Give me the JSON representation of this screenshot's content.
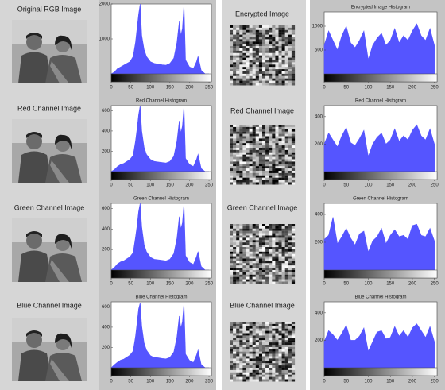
{
  "image_labels": [
    "Original RGB Image",
    "Red Channel Image",
    "Green Channel Image",
    "Blue Channel Image"
  ],
  "encrypted_labels": [
    "Encrypted Image",
    "Red Channel Image",
    "Green Channel Image",
    "Blue Channel Image"
  ],
  "chart_data": [
    {
      "type": "area",
      "color": "#5555ff",
      "xlim": [
        0,
        256
      ],
      "xticks": [
        0,
        50,
        100,
        150,
        200,
        250
      ],
      "ylim": [
        0,
        2000
      ],
      "yticks": [
        1000,
        2000
      ],
      "x": [
        0,
        8,
        16,
        24,
        32,
        40,
        48,
        56,
        62,
        66,
        70,
        74,
        78,
        84,
        90,
        100,
        110,
        120,
        130,
        140,
        150,
        160,
        168,
        174,
        178,
        182,
        186,
        190,
        200,
        210,
        218,
        222,
        230,
        240,
        250
      ],
      "values": [
        0,
        50,
        150,
        200,
        250,
        300,
        350,
        500,
        900,
        1300,
        1700,
        2000,
        1100,
        700,
        500,
        350,
        300,
        280,
        260,
        250,
        300,
        450,
        900,
        1500,
        1100,
        1300,
        2000,
        400,
        200,
        150,
        350,
        500,
        100,
        0,
        0
      ]
    },
    {
      "type": "area",
      "title": "Red Channel Histogram",
      "color": "#5555ff",
      "xlim": [
        0,
        256
      ],
      "xticks": [
        0,
        50,
        100,
        150,
        200,
        250
      ],
      "ylim": [
        0,
        650
      ],
      "yticks": [
        200,
        400,
        600
      ],
      "x": [
        0,
        8,
        16,
        24,
        32,
        40,
        48,
        56,
        62,
        66,
        70,
        74,
        78,
        84,
        90,
        100,
        110,
        120,
        130,
        140,
        150,
        160,
        168,
        174,
        178,
        182,
        186,
        190,
        200,
        210,
        218,
        222,
        230,
        240,
        250
      ],
      "values": [
        0,
        20,
        50,
        70,
        80,
        100,
        120,
        160,
        300,
        420,
        560,
        650,
        400,
        240,
        170,
        120,
        100,
        95,
        90,
        85,
        100,
        150,
        300,
        500,
        380,
        450,
        650,
        130,
        70,
        50,
        120,
        170,
        30,
        0,
        0
      ]
    },
    {
      "type": "area",
      "title": "Green Channel Histogram",
      "color": "#5555ff",
      "xlim": [
        0,
        256
      ],
      "xticks": [
        0,
        50,
        100,
        150,
        200,
        250
      ],
      "ylim": [
        0,
        650
      ],
      "yticks": [
        200,
        400,
        600
      ],
      "x": [
        0,
        8,
        16,
        24,
        32,
        40,
        48,
        56,
        62,
        66,
        70,
        74,
        78,
        84,
        90,
        100,
        110,
        120,
        130,
        140,
        150,
        160,
        168,
        174,
        178,
        182,
        186,
        190,
        200,
        210,
        218,
        222,
        230,
        240,
        250
      ],
      "values": [
        0,
        25,
        60,
        80,
        90,
        110,
        130,
        170,
        320,
        430,
        570,
        650,
        420,
        250,
        180,
        125,
        105,
        100,
        95,
        90,
        105,
        160,
        310,
        520,
        400,
        460,
        650,
        140,
        75,
        55,
        130,
        180,
        35,
        0,
        0
      ]
    },
    {
      "type": "area",
      "title": "Blue Channel Histogram",
      "color": "#5555ff",
      "xlim": [
        0,
        256
      ],
      "xticks": [
        0,
        50,
        100,
        150,
        200,
        250
      ],
      "ylim": [
        0,
        650
      ],
      "yticks": [
        200,
        400,
        600
      ],
      "x": [
        0,
        8,
        16,
        24,
        32,
        40,
        48,
        56,
        62,
        66,
        70,
        74,
        78,
        84,
        90,
        100,
        110,
        120,
        130,
        140,
        150,
        160,
        168,
        174,
        178,
        182,
        186,
        190,
        200,
        210,
        218,
        222,
        230,
        240,
        250
      ],
      "values": [
        0,
        30,
        55,
        75,
        85,
        105,
        125,
        165,
        310,
        440,
        580,
        640,
        410,
        245,
        175,
        120,
        100,
        98,
        92,
        88,
        102,
        155,
        305,
        510,
        390,
        455,
        640,
        135,
        72,
        52,
        125,
        175,
        32,
        0,
        0
      ]
    },
    {
      "type": "area",
      "title": "Encrypted Image Histogram",
      "color": "#5555ff",
      "xlim": [
        0,
        256
      ],
      "xticks": [
        0,
        50,
        100,
        150,
        200,
        250
      ],
      "ylim": [
        0,
        1300
      ],
      "yticks": [
        500,
        1000
      ],
      "x": [
        0,
        10,
        20,
        30,
        40,
        50,
        60,
        70,
        80,
        90,
        100,
        110,
        120,
        130,
        140,
        150,
        160,
        170,
        180,
        190,
        200,
        210,
        220,
        230,
        240,
        250
      ],
      "values": [
        600,
        900,
        700,
        500,
        800,
        1000,
        650,
        550,
        700,
        900,
        300,
        600,
        750,
        850,
        600,
        700,
        950,
        650,
        800,
        700,
        900,
        1050,
        800,
        700,
        950,
        600
      ]
    },
    {
      "type": "area",
      "title": "Red Channel Histogram",
      "color": "#5555ff",
      "xlim": [
        0,
        256
      ],
      "xticks": [
        0,
        50,
        100,
        150,
        200,
        250
      ],
      "ylim": [
        0,
        480
      ],
      "yticks": [
        200,
        400
      ],
      "x": [
        0,
        10,
        20,
        30,
        40,
        50,
        60,
        70,
        80,
        90,
        100,
        110,
        120,
        130,
        140,
        150,
        160,
        170,
        180,
        190,
        200,
        210,
        220,
        230,
        240,
        250
      ],
      "values": [
        200,
        280,
        230,
        180,
        260,
        320,
        210,
        190,
        240,
        300,
        110,
        200,
        250,
        280,
        200,
        230,
        310,
        220,
        260,
        230,
        300,
        340,
        260,
        230,
        310,
        200
      ]
    },
    {
      "type": "area",
      "title": "Green Channel Histogram",
      "color": "#5555ff",
      "xlim": [
        0,
        256
      ],
      "xticks": [
        0,
        50,
        100,
        150,
        200,
        250
      ],
      "ylim": [
        0,
        480
      ],
      "yticks": [
        200,
        400
      ],
      "x": [
        0,
        10,
        20,
        30,
        40,
        50,
        60,
        70,
        80,
        90,
        100,
        110,
        120,
        130,
        140,
        150,
        160,
        170,
        180,
        190,
        200,
        210,
        220,
        230,
        240,
        250
      ],
      "values": [
        220,
        250,
        380,
        190,
        240,
        300,
        230,
        180,
        260,
        280,
        130,
        210,
        240,
        300,
        190,
        250,
        290,
        240,
        250,
        220,
        320,
        330,
        250,
        240,
        300,
        210
      ]
    },
    {
      "type": "area",
      "title": "Blue Channel Histogram",
      "color": "#5555ff",
      "xlim": [
        0,
        256
      ],
      "xticks": [
        0,
        50,
        100,
        150,
        200,
        250
      ],
      "ylim": [
        0,
        480
      ],
      "yticks": [
        200,
        400
      ],
      "x": [
        0,
        10,
        20,
        30,
        40,
        50,
        60,
        70,
        80,
        90,
        100,
        110,
        120,
        130,
        140,
        150,
        160,
        170,
        180,
        190,
        200,
        210,
        220,
        230,
        240,
        250
      ],
      "values": [
        190,
        270,
        240,
        200,
        250,
        310,
        200,
        200,
        230,
        290,
        120,
        190,
        260,
        270,
        210,
        220,
        300,
        230,
        270,
        220,
        290,
        320,
        270,
        220,
        300,
        190
      ]
    }
  ]
}
